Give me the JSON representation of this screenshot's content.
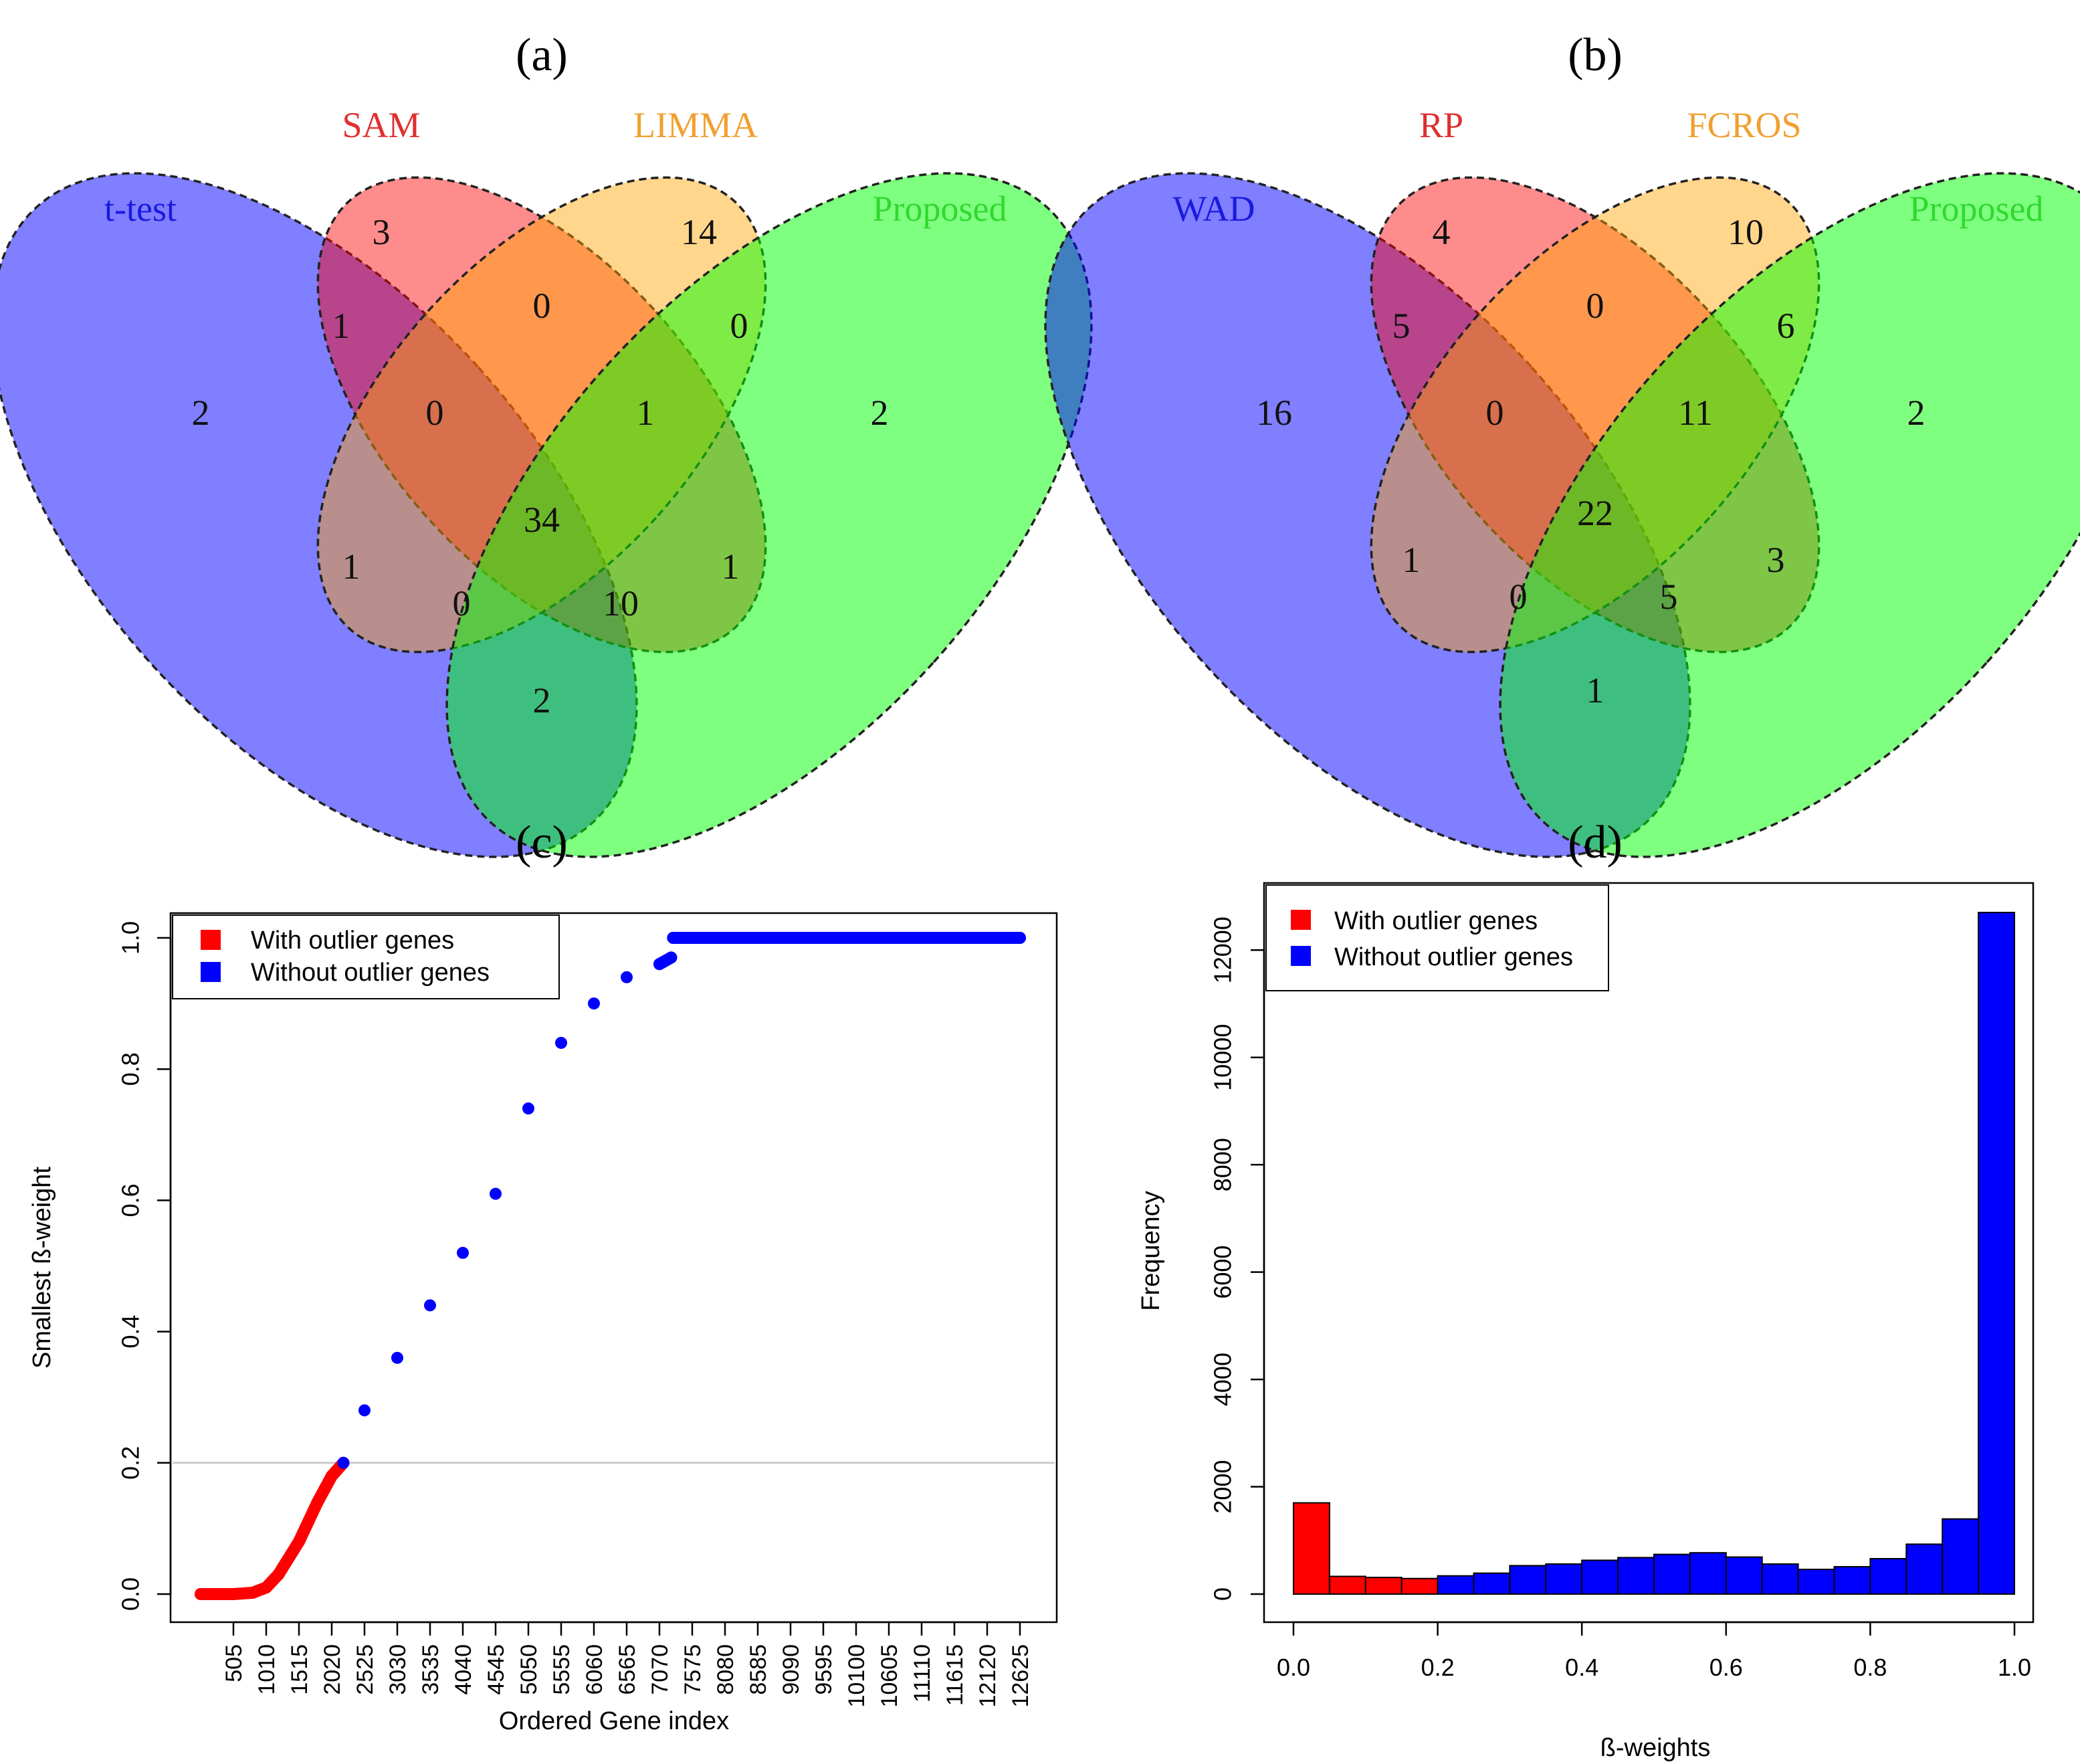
{
  "panels": {
    "a": {
      "label": "(a)",
      "sets": [
        {
          "name": "t-test",
          "color": "#0000ff"
        },
        {
          "name": "SAM",
          "color": "#ff0000"
        },
        {
          "name": "LIMMA",
          "color": "#ffa500"
        },
        {
          "name": "Proposed",
          "color": "#00ff00"
        }
      ],
      "counts": {
        "A": "2",
        "B": "3",
        "C": "14",
        "D": "2",
        "AB": "1",
        "BC": "0",
        "CD": "0",
        "ABC": "0",
        "BCD": "1",
        "ABCD": "34",
        "AC": "1",
        "BD": "1",
        "ACD": "0",
        "ABD": "10",
        "AD": "2"
      }
    },
    "b": {
      "label": "(b)",
      "sets": [
        {
          "name": "WAD",
          "color": "#0000ff"
        },
        {
          "name": "RP",
          "color": "#ff0000"
        },
        {
          "name": "FCROS",
          "color": "#ffa500"
        },
        {
          "name": "Proposed",
          "color": "#00ff00"
        }
      ],
      "counts": {
        "A": "16",
        "B": "4",
        "C": "10",
        "D": "2",
        "AB": "5",
        "BC": "0",
        "CD": "6",
        "ABC": "0",
        "BCD": "11",
        "ABCD": "22",
        "AC": "1",
        "BD": "3",
        "ACD": "0",
        "ABD": "5",
        "AD": "1"
      }
    },
    "c": {
      "label": "(c)"
    },
    "d": {
      "label": "(d)"
    }
  },
  "chart_data": [
    {
      "panel": "c",
      "type": "scatter",
      "xlabel": "Ordered Gene index",
      "ylabel": "Smallest ß-weight",
      "ylim": [
        0,
        1
      ],
      "xlim": [
        0,
        12625
      ],
      "xticks": [
        "505",
        "1010",
        "1515",
        "2020",
        "2525",
        "3030",
        "3535",
        "4040",
        "4545",
        "5050",
        "5555",
        "6060",
        "6565",
        "7070",
        "7575",
        "8080",
        "8585",
        "9090",
        "9595",
        "10100",
        "10605",
        "11110",
        "11615",
        "12120",
        "12625"
      ],
      "yticks": [
        "0.0",
        "0.2",
        "0.4",
        "0.6",
        "0.8",
        "1.0"
      ],
      "threshold": 0.2,
      "legend": {
        "position": "top-left",
        "entries": [
          {
            "label": "With outlier genes",
            "color": "#ff0000"
          },
          {
            "label": "Without outlier genes",
            "color": "#0000ff"
          }
        ]
      },
      "series": [
        {
          "name": "With outlier genes",
          "color": "#ff0000",
          "x": [
            0,
            505,
            800,
            1010,
            1200,
            1515,
            1800,
            2020,
            2200
          ],
          "y": [
            0.0,
            0.0,
            0.002,
            0.01,
            0.03,
            0.08,
            0.14,
            0.18,
            0.2
          ]
        },
        {
          "name": "Without outlier genes",
          "color": "#0000ff",
          "x": [
            2200,
            2525,
            3030,
            3535,
            4040,
            4545,
            5050,
            5555,
            6060,
            6565,
            7070,
            7250,
            7280,
            12625
          ],
          "y": [
            0.2,
            0.28,
            0.36,
            0.44,
            0.52,
            0.61,
            0.74,
            0.84,
            0.9,
            0.94,
            0.96,
            0.97,
            1.0,
            1.0
          ]
        }
      ]
    },
    {
      "panel": "d",
      "type": "bar",
      "xlabel": "ß-weights",
      "ylabel": "Frequency",
      "ylim": [
        0,
        13000
      ],
      "xlim": [
        0,
        1
      ],
      "xticks": [
        "0.0",
        "0.2",
        "0.4",
        "0.6",
        "0.8",
        "1.0"
      ],
      "yticks": [
        "0",
        "2000",
        "4000",
        "6000",
        "8000",
        "10000",
        "12000"
      ],
      "bin_width": 0.05,
      "legend": {
        "position": "top-left",
        "entries": [
          {
            "label": "With outlier genes",
            "color": "#ff0000"
          },
          {
            "label": "Without outlier genes",
            "color": "#0000ff"
          }
        ]
      },
      "series": [
        {
          "name": "With outlier genes",
          "color": "#ff0000",
          "bin_starts": [
            0.0,
            0.05,
            0.1,
            0.15
          ],
          "values": [
            1700,
            330,
            310,
            290
          ]
        },
        {
          "name": "Without outlier genes",
          "color": "#0000ff",
          "bin_starts": [
            0.2,
            0.25,
            0.3,
            0.35,
            0.4,
            0.45,
            0.5,
            0.55,
            0.6,
            0.65,
            0.7,
            0.75,
            0.8,
            0.85,
            0.9,
            0.95
          ],
          "values": [
            340,
            390,
            530,
            560,
            630,
            680,
            740,
            770,
            690,
            560,
            460,
            510,
            660,
            930,
            1400,
            12700
          ]
        }
      ]
    }
  ]
}
